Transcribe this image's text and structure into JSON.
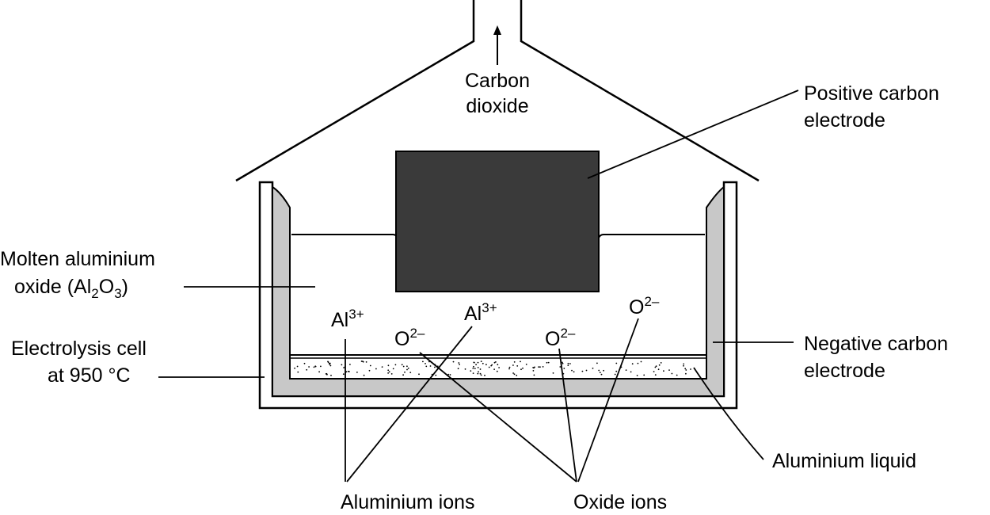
{
  "labels": {
    "carbon_dioxide_1": "Carbon",
    "carbon_dioxide_2": "dioxide",
    "positive_1": "Positive carbon",
    "positive_2": "electrode",
    "molten_1": "Molten aluminium",
    "molten_2_prefix": "oxide (Al",
    "molten_2_sub1": "2",
    "molten_2_mid": "O",
    "molten_2_sub2": "3",
    "molten_2_suffix": ")",
    "cell_1": "Electrolysis cell",
    "cell_2": "at 950 °C",
    "negative_1": "Negative carbon",
    "negative_2": "electrode",
    "aluminium_liquid": "Aluminium liquid",
    "aluminium_ions": "Aluminium ions",
    "oxide_ions": "Oxide ions"
  },
  "ions": {
    "al_base": "Al",
    "al_charge": "3+",
    "o_base": "O",
    "o_charge": "2–"
  },
  "colors": {
    "electrode": "#3a3a3a",
    "lining": "#c8c8c8",
    "outline": "#000000"
  }
}
